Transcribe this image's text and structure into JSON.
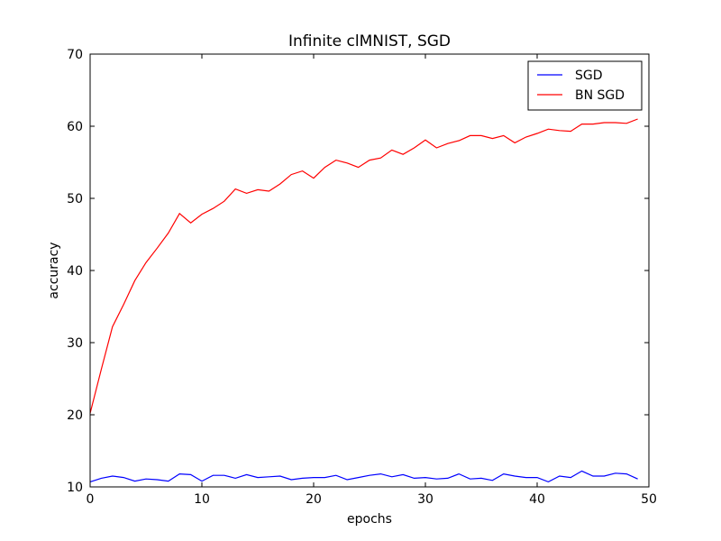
{
  "chart_data": {
    "type": "line",
    "title": "Infinite clMNIST, SGD",
    "xlabel": "epochs",
    "ylabel": "accuracy",
    "xlim": [
      0,
      50
    ],
    "ylim": [
      10,
      70
    ],
    "xticks": [
      "0",
      "10",
      "20",
      "30",
      "40",
      "50"
    ],
    "yticks": [
      "10",
      "20",
      "30",
      "40",
      "50",
      "60",
      "70"
    ],
    "grid": false,
    "legend_position": "top-right",
    "x": [
      0,
      1,
      2,
      3,
      4,
      5,
      6,
      7,
      8,
      9,
      10,
      11,
      12,
      13,
      14,
      15,
      16,
      17,
      18,
      19,
      20,
      21,
      22,
      23,
      24,
      25,
      26,
      27,
      28,
      29,
      30,
      31,
      32,
      33,
      34,
      35,
      36,
      37,
      38,
      39,
      40,
      41,
      42,
      43,
      44,
      45,
      46,
      47,
      48,
      49
    ],
    "series": [
      {
        "name": "SGD",
        "color": "#0000ff",
        "values": [
          10.7,
          11.2,
          11.5,
          11.3,
          10.8,
          11.1,
          11.0,
          10.8,
          11.8,
          11.7,
          10.8,
          11.6,
          11.6,
          11.2,
          11.7,
          11.3,
          11.4,
          11.5,
          11.0,
          11.2,
          11.3,
          11.3,
          11.6,
          11.0,
          11.3,
          11.6,
          11.8,
          11.4,
          11.7,
          11.2,
          11.3,
          11.1,
          11.2,
          11.8,
          11.1,
          11.2,
          10.9,
          11.8,
          11.5,
          11.3,
          11.3,
          10.7,
          11.5,
          11.3,
          12.2,
          11.5,
          11.5,
          11.9,
          11.8,
          11.1
        ]
      },
      {
        "name": "BN SGD",
        "color": "#ff0000",
        "values": [
          20.2,
          26.3,
          32.2,
          35.3,
          38.6,
          41.1,
          43.1,
          45.2,
          47.9,
          46.6,
          47.8,
          48.6,
          49.6,
          51.3,
          50.7,
          51.2,
          51.0,
          52.0,
          53.3,
          53.8,
          52.8,
          54.3,
          55.3,
          54.9,
          54.3,
          55.3,
          55.6,
          56.7,
          56.1,
          57.0,
          58.1,
          57.0,
          57.6,
          58.0,
          58.7,
          58.7,
          58.3,
          58.7,
          57.7,
          58.5,
          59.0,
          59.6,
          59.4,
          59.3,
          60.3,
          60.3,
          60.5,
          60.5,
          60.4,
          61.0
        ]
      }
    ]
  }
}
